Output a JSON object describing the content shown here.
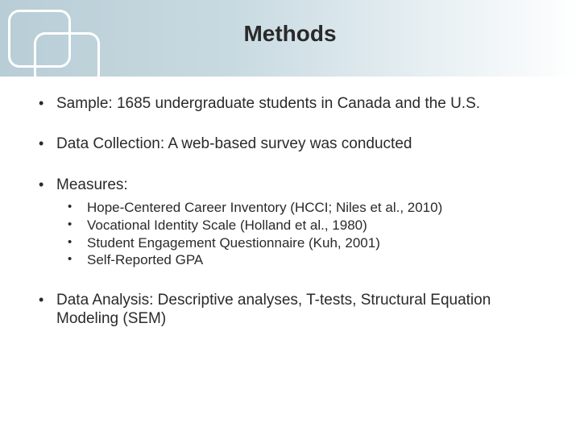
{
  "slide": {
    "title": "Methods",
    "colors": {
      "header_gradient_start": "#b8cdd6",
      "header_gradient_end": "#ffffff",
      "text": "#2a2a2a",
      "logo_stroke": "#ffffff"
    },
    "bullets": [
      {
        "text": "Sample: 1685 undergraduate students in Canada and the U.S."
      },
      {
        "text": "Data Collection:  A web-based survey was conducted"
      },
      {
        "text": "Measures:",
        "sub": [
          "Hope-Centered Career Inventory (HCCI; Niles et al., 2010)",
          "Vocational Identity Scale (Holland et al., 1980)",
          "Student Engagement Questionnaire (Kuh, 2001)",
          "Self-Reported GPA"
        ]
      },
      {
        "text": "Data Analysis: Descriptive analyses, T-tests, Structural Equation Modeling (SEM)"
      }
    ]
  }
}
